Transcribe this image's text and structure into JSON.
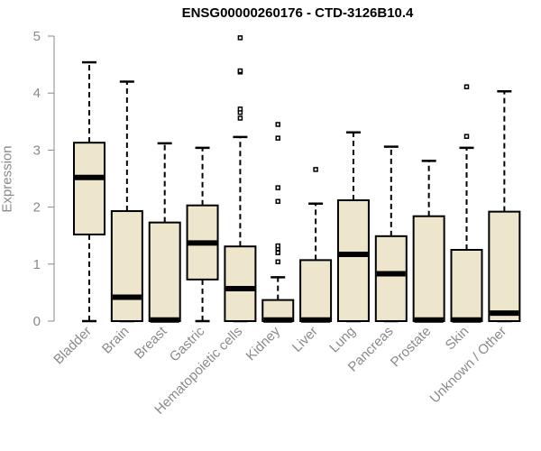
{
  "chart_data": {
    "type": "boxplot",
    "title": "ENSG00000260176 - CTD-3126B10.4",
    "xlabel": "",
    "ylabel": "Expression",
    "ylim": [
      0,
      5
    ],
    "yticks": [
      0,
      1,
      2,
      3,
      4,
      5
    ],
    "box_fill": "#ede6cc",
    "box_stroke": "#000000",
    "axis_color": "#8a8a8a",
    "categories": [
      "Bladder",
      "Brain",
      "Breast",
      "Gastric",
      "Hematopoietic cells",
      "Kidney",
      "Liver",
      "Lung",
      "Pancreas",
      "Prostate",
      "Skin",
      "Unknown / Other"
    ],
    "boxes": [
      {
        "whisker_low": 0,
        "q1": 1.52,
        "median": 2.52,
        "q3": 3.13,
        "whisker_high": 4.54,
        "outliers": []
      },
      {
        "whisker_low": 0,
        "q1": 0,
        "median": 0.42,
        "q3": 1.93,
        "whisker_high": 4.2,
        "outliers": []
      },
      {
        "whisker_low": 0,
        "q1": 0,
        "median": 0.02,
        "q3": 1.73,
        "whisker_high": 3.12,
        "outliers": []
      },
      {
        "whisker_low": 0,
        "q1": 0.73,
        "median": 1.37,
        "q3": 2.03,
        "whisker_high": 3.04,
        "outliers": []
      },
      {
        "whisker_low": 0,
        "q1": 0,
        "median": 0.57,
        "q3": 1.31,
        "whisker_high": 3.23,
        "outliers": [
          3.56,
          3.66,
          3.72,
          4.37,
          4.39,
          4.97
        ]
      },
      {
        "whisker_low": 0,
        "q1": 0,
        "median": 0.02,
        "q3": 0.37,
        "whisker_high": 0.77,
        "outliers": [
          1.04,
          1.2,
          1.27,
          1.32,
          2.1,
          2.34,
          3.21,
          3.45
        ]
      },
      {
        "whisker_low": 0,
        "q1": 0,
        "median": 0.02,
        "q3": 1.07,
        "whisker_high": 2.06,
        "outliers": [
          2.66
        ]
      },
      {
        "whisker_low": 0,
        "q1": 0,
        "median": 1.17,
        "q3": 2.12,
        "whisker_high": 3.31,
        "outliers": []
      },
      {
        "whisker_low": 0,
        "q1": 0,
        "median": 0.83,
        "q3": 1.49,
        "whisker_high": 3.06,
        "outliers": []
      },
      {
        "whisker_low": 0,
        "q1": 0,
        "median": 0.02,
        "q3": 1.84,
        "whisker_high": 2.81,
        "outliers": []
      },
      {
        "whisker_low": 0,
        "q1": 0,
        "median": 0.02,
        "q3": 1.25,
        "whisker_high": 3.04,
        "outliers": [
          3.24,
          4.11
        ]
      },
      {
        "whisker_low": 0,
        "q1": 0,
        "median": 0.14,
        "q3": 1.92,
        "whisker_high": 4.03,
        "outliers": []
      }
    ]
  }
}
